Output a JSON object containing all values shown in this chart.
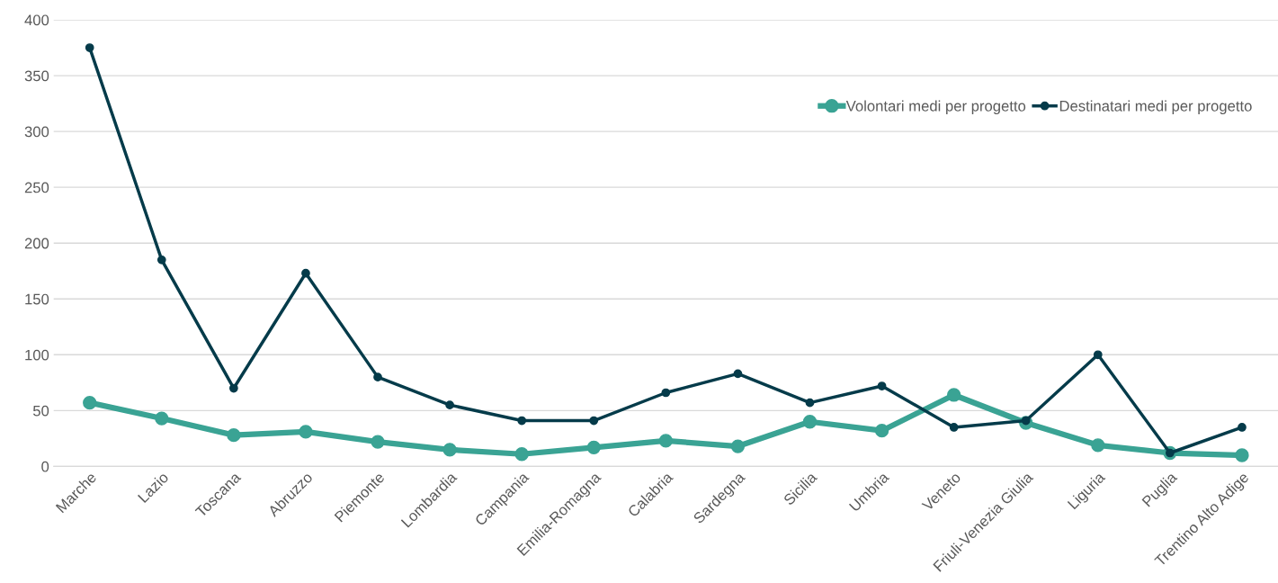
{
  "chart_data": {
    "type": "line",
    "categories": [
      "Marche",
      "Lazio",
      "Toscana",
      "Abruzzo",
      "Piemonte",
      "Lombardia",
      "Campania",
      "Emilia-Romagna",
      "Calabria",
      "Sardegna",
      "Sicilia",
      "Umbria",
      "Veneto",
      "Friuli-Venezia Giulia",
      "Liguria",
      "Puglia",
      "Trentino Alto Adige"
    ],
    "series": [
      {
        "name": "Volontari medi per progetto",
        "color": "#3aa394",
        "values": [
          57,
          43,
          28,
          31,
          22,
          15,
          11,
          17,
          23,
          18,
          40,
          32,
          64,
          39,
          19,
          12,
          10
        ]
      },
      {
        "name": "Destinatari medi per progetto",
        "color": "#053b4a",
        "values": [
          375,
          185,
          70,
          173,
          80,
          55,
          41,
          41,
          66,
          83,
          57,
          72,
          35,
          41,
          100,
          12,
          35
        ]
      }
    ],
    "ylim": [
      0,
      400
    ],
    "yticks": [
      0,
      50,
      100,
      150,
      200,
      250,
      300,
      350,
      400
    ],
    "grid": "y",
    "legend": "top right",
    "marker": "circle",
    "line_style": "solid"
  }
}
